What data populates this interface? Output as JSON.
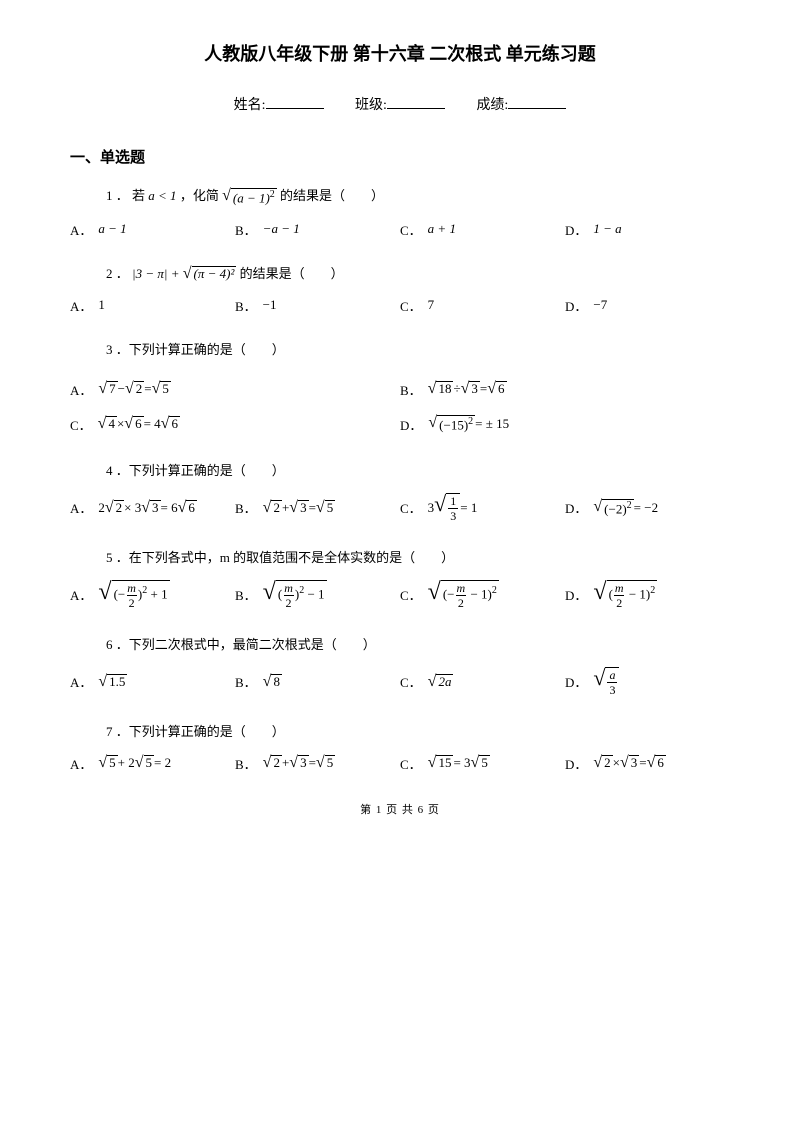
{
  "title": "人教版八年级下册 第十六章 二次根式 单元练习题",
  "info": {
    "name_label": "姓名:",
    "class_label": "班级:",
    "score_label": "成绩:"
  },
  "section_head": "一、单选题",
  "labels": {
    "A": "A．",
    "B": "B．",
    "C": "C．",
    "D": "D．"
  },
  "q1": {
    "num": "1 ．",
    "prefix": "若",
    "cond": "a < 1",
    "mid": "，化简",
    "suffix": " 的结果是（　　）",
    "a": "a − 1",
    "b": "−a − 1",
    "c": "a + 1",
    "d": "1 − a",
    "radicand": "(a − 1)",
    "exp": "2"
  },
  "q2": {
    "num": "2 ．",
    "text_suffix": "的结果是（　　）",
    "abs": "|3 − π| + ",
    "radicand": "(π − 4)²",
    "a": "1",
    "b": "−1",
    "c": "7",
    "d": "−7"
  },
  "q3": {
    "num": "3 ．",
    "text": "下列计算正确的是（　　）",
    "a_l": "7",
    "a_m": " − ",
    "a_r": "2",
    "a_eq": " = ",
    "a_res": "5",
    "b_l": "18",
    "b_m": " ÷ ",
    "b_r": "3",
    "b_eq": " = ",
    "b_res": "6",
    "c_l": "4",
    "c_m": " × ",
    "c_r": "6",
    "c_eq": " = 4",
    "c_res": "6",
    "d_rad": "(−15)",
    "d_exp": "2",
    "d_eq": " = ± 15"
  },
  "q4": {
    "num": "4 ．",
    "text": "下列计算正确的是（　　）",
    "a_pre": "2",
    "a_l": "2",
    "a_m": " × 3",
    "a_r": "3",
    "a_eq": " = 6",
    "a_res": "6",
    "b_l": "2",
    "b_m": " + ",
    "b_r": "3",
    "b_eq": " = ",
    "b_res": "5",
    "c_pre": "3",
    "c_num": "1",
    "c_den": "3",
    "c_eq": " = 1",
    "d_rad": "(−2)",
    "d_exp": "2",
    "d_eq": "  =  −2"
  },
  "q5": {
    "num": "5 ．",
    "text": "在下列各式中，m 的取值范围不是全体实数的是（　　）",
    "a_in_pre": "(−",
    "a_frac_n": "m",
    "a_frac_d": "2",
    "a_in_post": ")",
    "a_exp": "2",
    "a_tail": " + 1",
    "b_in_pre": "(",
    "b_frac_n": "m",
    "b_frac_d": "2",
    "b_in_post": ")",
    "b_exp": "2",
    "b_tail": " − 1",
    "c_in_pre": "(−",
    "c_frac_n": "m",
    "c_frac_d": "2",
    "c_in_mid": " − 1)",
    "c_exp": "2",
    "d_in_pre": "(",
    "d_frac_n": "m",
    "d_frac_d": "2",
    "d_in_mid": " − 1)",
    "d_exp": "2"
  },
  "q6": {
    "num": "6 ．",
    "text": "下列二次根式中，最简二次根式是（　　）",
    "a": "1.5",
    "b": "8",
    "c": "2a",
    "d_num": "a",
    "d_den": "3"
  },
  "q7": {
    "num": "7 ．",
    "text": "下列计算正确的是（　　）",
    "a_l": "5",
    "a_m": " + 2",
    "a_r": "5",
    "a_eq": " = 2",
    "b_l": "2",
    "b_m": " + ",
    "b_r": "3",
    "b_eq": " = ",
    "b_res": "5",
    "c_l": "15",
    "c_eq": " = 3",
    "c_res": "5",
    "d_l": "2",
    "d_m": " × ",
    "d_r": "3",
    "d_eq": " = ",
    "d_res": "6"
  },
  "footer": "第 1 页 共 6 页"
}
